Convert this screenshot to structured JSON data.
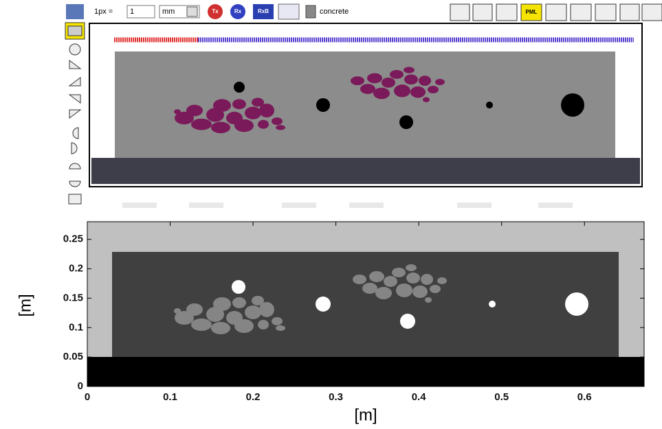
{
  "toolbar": {
    "scale_label": "1px =",
    "scale_value": "1",
    "unit": "mm",
    "buttons": [
      "Tx",
      "Rx",
      "RxB",
      "PML"
    ],
    "material": "concrete"
  },
  "chart_data": {
    "type": "image",
    "xlabel": "[m]",
    "ylabel": "[m]",
    "xlim": [
      0,
      0.672
    ],
    "ylim": [
      0,
      0.28
    ],
    "xticks": [
      0,
      0.1,
      0.2,
      0.3,
      0.4,
      0.5,
      0.6
    ],
    "yticks": [
      0,
      0.05,
      0.1,
      0.15,
      0.2,
      0.25
    ]
  }
}
